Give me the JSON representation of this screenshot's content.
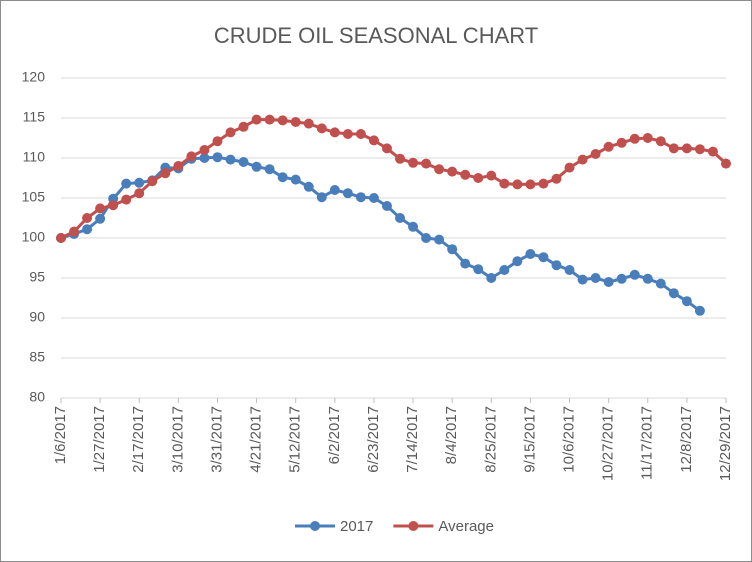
{
  "chart_data": {
    "type": "line",
    "title": "CRUDE OIL SEASONAL CHART",
    "categories": [
      "1/6/2017",
      null,
      null,
      "1/27/2017",
      null,
      null,
      "2/17/2017",
      null,
      null,
      "3/10/2017",
      null,
      null,
      "3/31/2017",
      null,
      null,
      "4/21/2017",
      null,
      null,
      "5/12/2017",
      null,
      null,
      "6/2/2017",
      null,
      null,
      "6/23/2017",
      null,
      null,
      "7/14/2017",
      null,
      null,
      "8/4/2017",
      null,
      null,
      "8/25/2017",
      null,
      null,
      "9/15/2017",
      null,
      null,
      "10/6/2017",
      null,
      null,
      "10/27/2017",
      null,
      null,
      "11/17/2017",
      null,
      null,
      "12/8/2017",
      null,
      null,
      "12/29/2017"
    ],
    "series": [
      {
        "name": "2017",
        "color": "#4a7ebb",
        "values": [
          100,
          100.5,
          101.1,
          102.4,
          104.9,
          106.8,
          106.9,
          107.2,
          108.8,
          108.7,
          109.9,
          110,
          110.1,
          109.8,
          109.5,
          108.9,
          108.6,
          107.6,
          107.3,
          106.4,
          105.1,
          106,
          105.6,
          105.1,
          105,
          104,
          102.5,
          101.4,
          100,
          99.8,
          98.6,
          96.8,
          96.1,
          95,
          96,
          97.1,
          98,
          97.6,
          96.6,
          96,
          94.8,
          95,
          94.5,
          94.9,
          95.4,
          94.9,
          94.3,
          93.1,
          92.1,
          90.9,
          null,
          null
        ]
      },
      {
        "name": "Average",
        "color": "#c0504d",
        "values": [
          100,
          100.8,
          102.5,
          103.7,
          104.1,
          104.8,
          105.6,
          107.1,
          108.1,
          109,
          110.2,
          111,
          112.1,
          113.2,
          113.9,
          114.8,
          114.8,
          114.7,
          114.5,
          114.3,
          113.7,
          113.2,
          113,
          113,
          112.2,
          111.2,
          109.9,
          109.4,
          109.3,
          108.6,
          108.3,
          107.9,
          107.5,
          107.8,
          106.8,
          106.7,
          106.7,
          106.8,
          107.4,
          108.8,
          109.8,
          110.5,
          111.4,
          111.9,
          112.4,
          112.5,
          112.1,
          111.2,
          111.2,
          111.1,
          110.8,
          109.3
        ]
      }
    ],
    "ylim": [
      80,
      120
    ],
    "yticks": [
      80,
      85,
      90,
      95,
      100,
      105,
      110,
      115,
      120
    ],
    "grid": true,
    "legend": "bottom"
  }
}
